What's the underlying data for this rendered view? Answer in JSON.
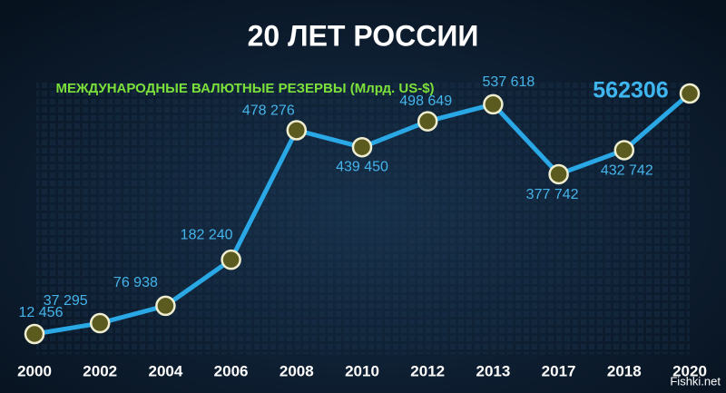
{
  "chart_data": {
    "type": "line",
    "title": "20 ЛЕТ РОССИИ",
    "subtitle": "МЕЖДУНАРОДНЫЕ ВАЛЮТНЫЕ РЕЗЕРВЫ (Млрд. US-$)",
    "categories": [
      "2000",
      "2002",
      "2004",
      "2006",
      "2008",
      "2010",
      "2012",
      "2013",
      "2017",
      "2018",
      "2020"
    ],
    "values": [
      12456,
      37295,
      76938,
      182240,
      478276,
      439450,
      498649,
      537618,
      377742,
      432742,
      562306
    ],
    "value_labels": [
      "12 456",
      "37 295",
      "76 938",
      "182 240",
      "478 276",
      "439 450",
      "498 649",
      "537 618",
      "377 742",
      "432 742",
      "562306"
    ],
    "color": "#2aa8e6",
    "watermark": "Fishki.net"
  }
}
